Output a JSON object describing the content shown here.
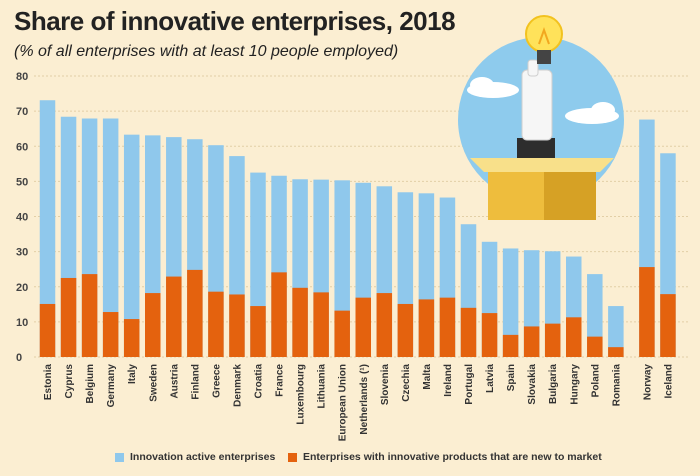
{
  "chart_data": {
    "type": "bar",
    "title": "Share of innovative enterprises, 2018",
    "subtitle": "(% of all enterprises with at least 10 people employed)",
    "xlabel": "",
    "ylabel": "",
    "ylim": [
      0,
      80
    ],
    "yticks": [
      0,
      10,
      20,
      30,
      40,
      50,
      60,
      70,
      80
    ],
    "grid": true,
    "legend_position": "bottom",
    "categories": [
      "Estonia",
      "Cyprus",
      "Belgium",
      "Germany",
      "Italy",
      "Sweden",
      "Austria",
      "Finland",
      "Greece",
      "Denmark",
      "Croatia",
      "France",
      "Luxembourg",
      "Lithuania",
      "European Union",
      "Netherlands (¹)",
      "Slovenia",
      "Czechia",
      "Malta",
      "Ireland",
      "Portugal",
      "Latvia",
      "Spain",
      "Slovakia",
      "Bulgaria",
      "Hungary",
      "Poland",
      "Romania",
      "Norway",
      "Iceland"
    ],
    "series": [
      {
        "name": "Innovation active enterprises",
        "color": "#8fc8ec",
        "values": [
          73.1,
          68.4,
          67.9,
          67.9,
          63.3,
          63.1,
          62.6,
          62.0,
          60.3,
          57.2,
          52.5,
          51.6,
          50.6,
          50.5,
          50.3,
          49.6,
          48.6,
          46.9,
          46.6,
          45.4,
          37.8,
          32.8,
          30.9,
          30.4,
          30.1,
          28.6,
          23.6,
          14.5,
          67.6,
          58.0
        ]
      },
      {
        "name": "Enterprises with innovative products that are new to market",
        "color": "#e4620e",
        "values": [
          15.1,
          22.5,
          23.6,
          12.8,
          10.8,
          18.2,
          22.9,
          24.8,
          18.6,
          17.8,
          14.5,
          24.1,
          19.7,
          18.4,
          13.2,
          16.9,
          18.2,
          15.1,
          16.4,
          16.9,
          14.0,
          12.5,
          6.3,
          8.7,
          9.5,
          11.3,
          5.8,
          2.8,
          25.6,
          17.9
        ]
      }
    ]
  }
}
